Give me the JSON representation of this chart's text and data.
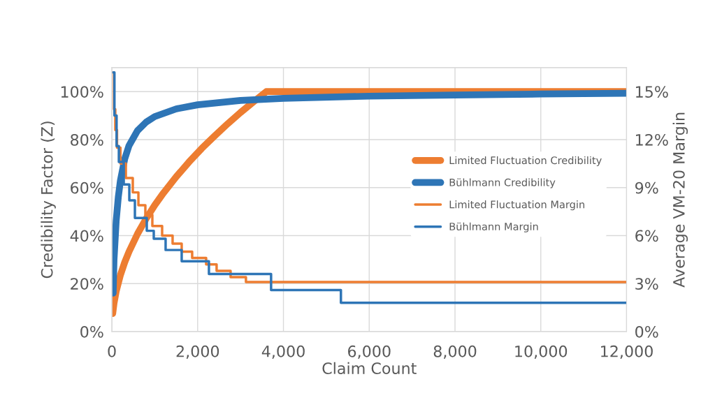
{
  "chart_data": {
    "type": "line",
    "xlabel": "Claim Count",
    "ylabel": "Credibility Factor (Z)",
    "y2label": "Average VM-20 Margin",
    "xlim": [
      0,
      12000
    ],
    "xticks": [
      0,
      {
        "value": 2000,
        "label": "2,000"
      },
      {
        "value": 4000,
        "label": "4,000"
      },
      {
        "value": 6000,
        "label": "6,000"
      },
      {
        "value": 8000,
        "label": "8,000"
      },
      {
        "value": 10000,
        "label": "10,000"
      },
      {
        "value": 12000,
        "label": "12,000"
      }
    ],
    "ylim": [
      0,
      1.1
    ],
    "yticks": [
      {
        "value": 0,
        "label": "0%"
      },
      {
        "value": 0.2,
        "label": "20%"
      },
      {
        "value": 0.4,
        "label": "40%"
      },
      {
        "value": 0.6,
        "label": "60%"
      },
      {
        "value": 0.8,
        "label": "80%"
      },
      {
        "value": 1.0,
        "label": "100%"
      }
    ],
    "y2lim": [
      0,
      0.165
    ],
    "y2ticks": [
      {
        "value": 0,
        "label": "0%"
      },
      {
        "value": 0.03,
        "label": "3%"
      },
      {
        "value": 0.06,
        "label": "6%"
      },
      {
        "value": 0.09,
        "label": "9%"
      },
      {
        "value": 0.12,
        "label": "12%"
      },
      {
        "value": 0.15,
        "label": "15%"
      }
    ],
    "grid": true,
    "legend": "right",
    "series": [
      {
        "name": "Limited Fluctuation Credibility",
        "color": "#ed7d31",
        "x": [
          20,
          50,
          100,
          200,
          300,
          400,
          600,
          800,
          1000,
          1200,
          1500,
          1800,
          2100,
          2400,
          2700,
          3000,
          3300,
          3600,
          12000
        ],
        "values": [
          0.075,
          0.118,
          0.167,
          0.236,
          0.289,
          0.333,
          0.408,
          0.471,
          0.527,
          0.577,
          0.645,
          0.707,
          0.764,
          0.816,
          0.866,
          0.913,
          0.957,
          1.0,
          1.0
        ]
      },
      {
        "name": "Bühlmann Credibility",
        "color": "#2e75b6",
        "x": [
          30,
          50,
          100,
          150,
          200,
          300,
          400,
          600,
          800,
          1000,
          1500,
          2000,
          3000,
          4000,
          6000,
          8000,
          10000,
          12000
        ],
        "values": [
          0.16,
          0.3,
          0.46,
          0.56,
          0.63,
          0.72,
          0.775,
          0.838,
          0.873,
          0.896,
          0.928,
          0.945,
          0.963,
          0.972,
          0.981,
          0.986,
          0.99,
          0.993
        ]
      },
      {
        "name": "Limited Fluctuation Margin",
        "color": "#ed7d31",
        "type": "step",
        "axis": "y2",
        "x": [
          30,
          50,
          80,
          120,
          200,
          326,
          488,
          619,
          781,
          944,
          1172,
          1416,
          1628,
          1872,
          2198,
          2442,
          2768,
          3126,
          12000
        ],
        "values": [
          0.162,
          0.139,
          0.126,
          0.115,
          0.105,
          0.096,
          0.087,
          0.079,
          0.073,
          0.066,
          0.06,
          0.055,
          0.05,
          0.046,
          0.042,
          0.038,
          0.034,
          0.031,
          0.031
        ]
      },
      {
        "name": "Bühlmann Margin",
        "color": "#2e75b6",
        "type": "step",
        "axis": "y2",
        "x": [
          30,
          60,
          110,
          163,
          277,
          407,
          537,
          814,
          977,
          1253,
          1628,
          2263,
          3712,
          5340,
          12000
        ],
        "values": [
          0.162,
          0.135,
          0.116,
          0.106,
          0.092,
          0.082,
          0.071,
          0.063,
          0.058,
          0.051,
          0.044,
          0.036,
          0.026,
          0.018,
          0.018
        ]
      }
    ]
  }
}
